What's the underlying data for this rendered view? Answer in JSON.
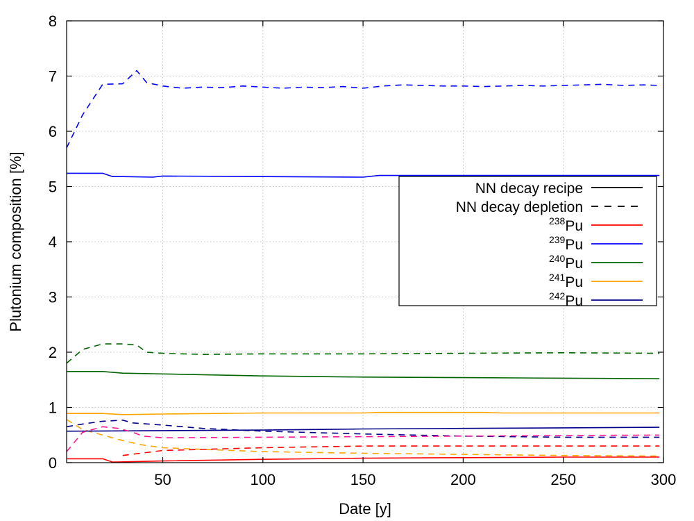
{
  "chart_data": {
    "type": "line",
    "xlabel": "Date [y]",
    "ylabel": "Plutonium composition [%]",
    "xlim": [
      2,
      300
    ],
    "ylim": [
      0,
      8
    ],
    "xticks": [
      50,
      100,
      150,
      200,
      250,
      300
    ],
    "yticks": [
      0,
      1,
      2,
      3,
      4,
      5,
      6,
      7,
      8
    ],
    "grid": true,
    "legend_position": "top-right",
    "legend": [
      {
        "label": "NN decay recipe",
        "style": "solid",
        "color": "#000000"
      },
      {
        "label": "NN decay depletion",
        "style": "dashed",
        "color": "#000000"
      },
      {
        "sup": "238",
        "label": "Pu",
        "style": "solid",
        "color": "#ff0000"
      },
      {
        "sup": "239",
        "label": "Pu",
        "style": "solid",
        "color": "#0000ff"
      },
      {
        "sup": "240",
        "label": "Pu",
        "style": "solid",
        "color": "#006400"
      },
      {
        "sup": "241",
        "label": "Pu",
        "style": "solid",
        "color": "#ffa500"
      },
      {
        "sup": "242",
        "label": "Pu",
        "style": "solid",
        "color": "#00008b"
      }
    ],
    "series": [
      {
        "isotope": "239",
        "method": "recipe",
        "color": "#0000ff",
        "style": "solid",
        "x": [
          2,
          10,
          20,
          25,
          30,
          45,
          50,
          100,
          150,
          158,
          200,
          250,
          298
        ],
        "y": [
          5.24,
          5.24,
          5.24,
          5.18,
          5.18,
          5.17,
          5.19,
          5.18,
          5.17,
          5.2,
          5.2,
          5.2,
          5.2
        ]
      },
      {
        "isotope": "239",
        "method": "depletion",
        "color": "#0000ff",
        "style": "dashed",
        "x": [
          2,
          10,
          20,
          30,
          37,
          42,
          50,
          60,
          70,
          80,
          90,
          100,
          110,
          120,
          130,
          140,
          150,
          160,
          170,
          180,
          190,
          200,
          210,
          220,
          230,
          240,
          250,
          260,
          270,
          280,
          290,
          298
        ],
        "y": [
          5.7,
          6.3,
          6.85,
          6.86,
          7.1,
          6.88,
          6.82,
          6.78,
          6.8,
          6.79,
          6.82,
          6.8,
          6.78,
          6.8,
          6.79,
          6.81,
          6.78,
          6.82,
          6.84,
          6.83,
          6.82,
          6.82,
          6.81,
          6.82,
          6.83,
          6.82,
          6.83,
          6.84,
          6.85,
          6.83,
          6.84,
          6.83
        ]
      },
      {
        "isotope": "240",
        "method": "recipe",
        "color": "#006400",
        "style": "solid",
        "x": [
          2,
          20,
          30,
          45,
          100,
          150,
          200,
          250,
          298
        ],
        "y": [
          1.65,
          1.65,
          1.62,
          1.61,
          1.57,
          1.55,
          1.54,
          1.53,
          1.52
        ]
      },
      {
        "isotope": "240",
        "method": "depletion",
        "color": "#006400",
        "style": "dashed",
        "x": [
          2,
          10,
          20,
          30,
          37,
          42,
          50,
          70,
          100,
          150,
          200,
          250,
          298
        ],
        "y": [
          1.8,
          2.05,
          2.15,
          2.15,
          2.13,
          2.0,
          1.98,
          1.96,
          1.97,
          1.97,
          1.98,
          1.99,
          1.98
        ]
      },
      {
        "isotope": "241",
        "method": "recipe",
        "color": "#ffa500",
        "style": "solid",
        "x": [
          2,
          20,
          30,
          50,
          100,
          150,
          158,
          210,
          220,
          298
        ],
        "y": [
          0.89,
          0.89,
          0.87,
          0.88,
          0.9,
          0.9,
          0.91,
          0.91,
          0.9,
          0.9
        ]
      },
      {
        "isotope": "241",
        "method": "depletion",
        "color": "#ffa500",
        "style": "dashed",
        "x": [
          2,
          10,
          20,
          30,
          40,
          50,
          70,
          100,
          150,
          200,
          250,
          298
        ],
        "y": [
          0.78,
          0.6,
          0.5,
          0.4,
          0.32,
          0.27,
          0.24,
          0.2,
          0.17,
          0.15,
          0.13,
          0.12
        ]
      },
      {
        "isotope": "242",
        "method": "recipe",
        "color": "#00008b",
        "style": "solid",
        "x": [
          2,
          50,
          100,
          150,
          200,
          250,
          298
        ],
        "y": [
          0.57,
          0.58,
          0.59,
          0.61,
          0.62,
          0.63,
          0.64
        ]
      },
      {
        "isotope": "242",
        "method": "depletion",
        "color": "#00008b",
        "style": "dashed",
        "x": [
          2,
          10,
          20,
          30,
          35,
          50,
          70,
          100,
          150,
          200,
          250,
          298
        ],
        "y": [
          0.65,
          0.7,
          0.75,
          0.77,
          0.72,
          0.68,
          0.62,
          0.57,
          0.52,
          0.48,
          0.46,
          0.46
        ]
      },
      {
        "isotope": "238",
        "method": "recipe",
        "color": "#ff0000",
        "style": "solid",
        "x": [
          2,
          20,
          25,
          50,
          100,
          150,
          200,
          250,
          298
        ],
        "y": [
          0.07,
          0.07,
          0.01,
          0.03,
          0.06,
          0.08,
          0.09,
          0.1,
          0.1
        ]
      },
      {
        "isotope": "238",
        "method": "depletion",
        "color": "#ff0000",
        "style": "dashed",
        "x": [
          30,
          50,
          100,
          150,
          200,
          250,
          298
        ],
        "y": [
          0.13,
          0.22,
          0.27,
          0.3,
          0.3,
          0.3,
          0.3
        ]
      },
      {
        "isotope": "extra",
        "method": "depletion",
        "color": "#ff1493",
        "style": "dashed",
        "x": [
          2,
          10,
          20,
          28,
          35,
          40,
          50,
          100,
          150,
          200,
          250,
          298
        ],
        "y": [
          0.2,
          0.55,
          0.65,
          0.62,
          0.55,
          0.48,
          0.45,
          0.46,
          0.47,
          0.48,
          0.49,
          0.5
        ]
      }
    ]
  }
}
